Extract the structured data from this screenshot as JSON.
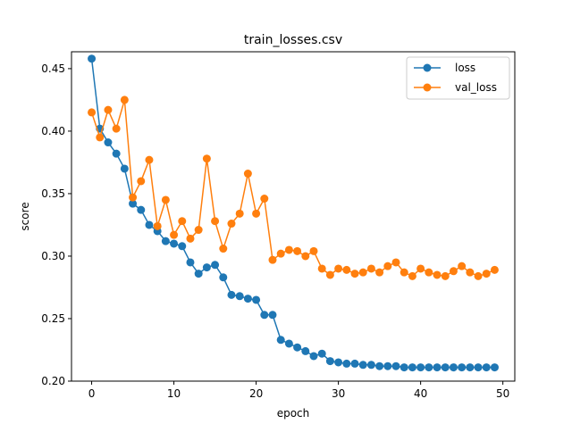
{
  "chart_data": {
    "type": "line",
    "title": "train_losses.csv",
    "xlabel": "epoch",
    "ylabel": "score",
    "xlim": [
      -2.45,
      51.45
    ],
    "ylim": [
      0.2,
      0.4635
    ],
    "x_ticks": [
      0,
      10,
      20,
      30,
      40,
      50
    ],
    "y_ticks": [
      0.2,
      0.25,
      0.3,
      0.35,
      0.4,
      0.45
    ],
    "y_tick_labels": [
      "0.20",
      "0.25",
      "0.30",
      "0.35",
      "0.40",
      "0.45"
    ],
    "grid": false,
    "legend_position": "top-right",
    "x": [
      0,
      1,
      2,
      3,
      4,
      5,
      6,
      7,
      8,
      9,
      10,
      11,
      12,
      13,
      14,
      15,
      16,
      17,
      18,
      19,
      20,
      21,
      22,
      23,
      24,
      25,
      26,
      27,
      28,
      29,
      30,
      31,
      32,
      33,
      34,
      35,
      36,
      37,
      38,
      39,
      40,
      41,
      42,
      43,
      44,
      45,
      46,
      47,
      48,
      49
    ],
    "series": [
      {
        "name": "loss",
        "color": "#1f77b4",
        "values": [
          0.458,
          0.402,
          0.391,
          0.382,
          0.37,
          0.342,
          0.337,
          0.325,
          0.32,
          0.312,
          0.31,
          0.308,
          0.295,
          0.286,
          0.291,
          0.293,
          0.283,
          0.269,
          0.268,
          0.266,
          0.265,
          0.253,
          0.253,
          0.233,
          0.23,
          0.227,
          0.224,
          0.22,
          0.222,
          0.216,
          0.215,
          0.214,
          0.214,
          0.213,
          0.213,
          0.212,
          0.212,
          0.212,
          0.211,
          0.211,
          0.211,
          0.211,
          0.211,
          0.211,
          0.211,
          0.211,
          0.211,
          0.211,
          0.211,
          0.211
        ]
      },
      {
        "name": "val_loss",
        "color": "#ff7f0e",
        "values": [
          0.415,
          0.395,
          0.417,
          0.402,
          0.425,
          0.347,
          0.36,
          0.377,
          0.324,
          0.345,
          0.317,
          0.328,
          0.314,
          0.321,
          0.378,
          0.328,
          0.306,
          0.326,
          0.334,
          0.366,
          0.334,
          0.346,
          0.297,
          0.302,
          0.305,
          0.304,
          0.3,
          0.304,
          0.29,
          0.285,
          0.29,
          0.289,
          0.286,
          0.287,
          0.29,
          0.287,
          0.292,
          0.295,
          0.287,
          0.284,
          0.29,
          0.287,
          0.285,
          0.284,
          0.288,
          0.292,
          0.287,
          0.284,
          0.286,
          0.289
        ]
      }
    ]
  }
}
